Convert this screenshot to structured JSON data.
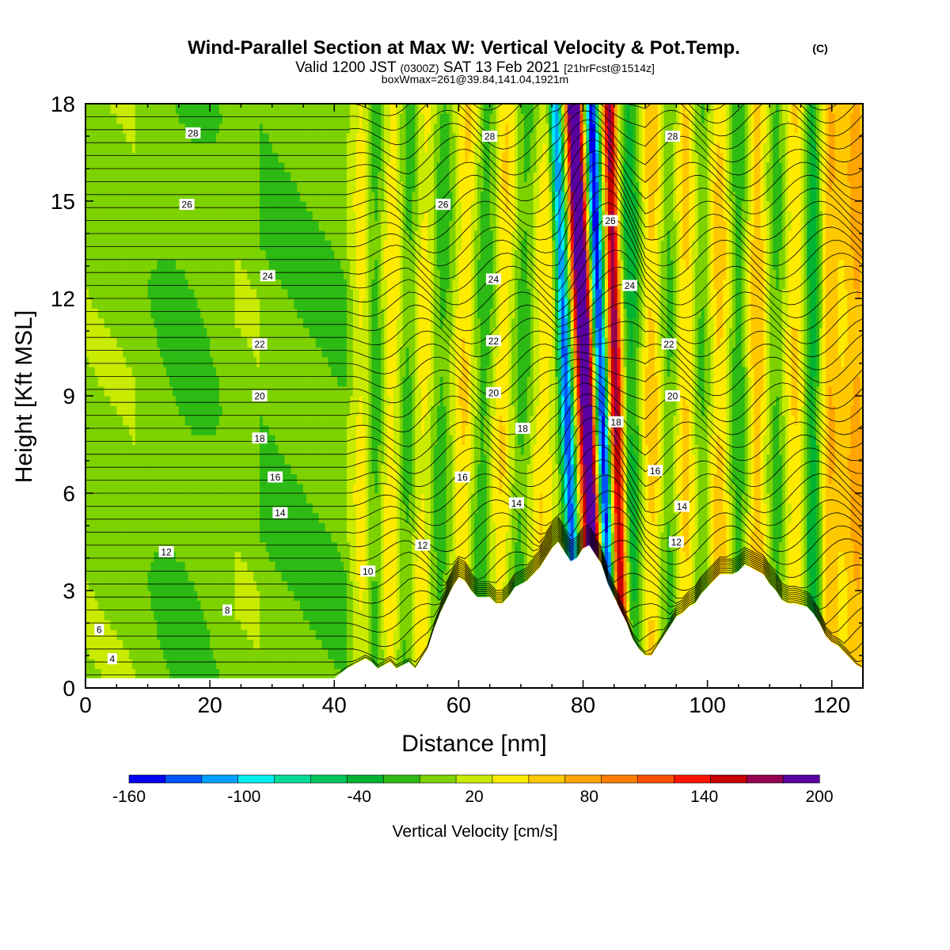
{
  "header": {
    "title": "Wind-Parallel Section at Max W: Vertical Velocity & Pot.Temp.",
    "title_mark": "(C)",
    "valid_prefix": "Valid 1200 JST",
    "valid_utc": "(0300Z)",
    "valid_date": "SAT 13 Feb 2021",
    "forecast": "[21hrFcst@1514z]",
    "boxmax": "boxWmax=261@39.84,141.04,1921m"
  },
  "chart_data": {
    "type": "heatmap",
    "title": "Wind-Parallel Section at Max W: Vertical Velocity & Pot.Temp.",
    "xlabel": "Distance [nm]",
    "ylabel": "Height [Kft MSL]",
    "xlim": [
      0,
      125
    ],
    "ylim": [
      0,
      18
    ],
    "x_ticks": [
      0,
      20,
      40,
      60,
      80,
      100,
      120
    ],
    "y_ticks": [
      0,
      3,
      6,
      9,
      12,
      15,
      18
    ],
    "colorbar": {
      "label": "Vertical Velocity [cm/s]",
      "levels": [
        -160,
        -140,
        -120,
        -100,
        -80,
        -60,
        -40,
        -20,
        0,
        20,
        40,
        60,
        80,
        100,
        120,
        140,
        160,
        180,
        200
      ],
      "tick_labels": [
        -160,
        -100,
        -40,
        20,
        80,
        140,
        200
      ],
      "colors": [
        "#0000f0",
        "#0055ff",
        "#00a0ff",
        "#00ecf0",
        "#00dc96",
        "#00c55a",
        "#00b432",
        "#2dba14",
        "#7dd200",
        "#c8eb00",
        "#ffeb00",
        "#ffc800",
        "#ffa500",
        "#ff7d00",
        "#ff5000",
        "#ff1400",
        "#c80000",
        "#960050",
        "#5a00a0"
      ]
    },
    "terrain": [
      [
        0,
        0.3
      ],
      [
        5,
        0.3
      ],
      [
        10,
        0.3
      ],
      [
        15,
        0.3
      ],
      [
        20,
        0.3
      ],
      [
        25,
        0.3
      ],
      [
        30,
        0.3
      ],
      [
        35,
        0.3
      ],
      [
        40,
        0.3
      ],
      [
        42,
        0.6
      ],
      [
        44,
        0.8
      ],
      [
        45,
        0.9
      ],
      [
        46,
        0.8
      ],
      [
        47,
        0.6
      ],
      [
        49,
        0.8
      ],
      [
        50,
        0.6
      ],
      [
        52,
        0.8
      ],
      [
        53,
        0.6
      ],
      [
        54,
        0.9
      ],
      [
        55,
        1.2
      ],
      [
        56,
        1.8
      ],
      [
        57,
        2.3
      ],
      [
        58,
        2.7
      ],
      [
        59,
        3.1
      ],
      [
        60,
        3.4
      ],
      [
        61,
        3.3
      ],
      [
        62,
        3.0
      ],
      [
        63,
        2.8
      ],
      [
        65,
        2.8
      ],
      [
        66,
        2.6
      ],
      [
        67,
        2.6
      ],
      [
        68,
        2.8
      ],
      [
        69,
        3.1
      ],
      [
        71,
        3.3
      ],
      [
        72,
        3.5
      ],
      [
        73,
        3.7
      ],
      [
        75,
        4.3
      ],
      [
        76,
        4.5
      ],
      [
        77,
        4.2
      ],
      [
        78,
        3.9
      ],
      [
        79,
        4.0
      ],
      [
        80,
        4.3
      ],
      [
        81,
        4.4
      ],
      [
        82,
        4.1
      ],
      [
        83,
        3.8
      ],
      [
        84,
        3.2
      ],
      [
        85,
        2.8
      ],
      [
        86,
        2.4
      ],
      [
        87,
        2.0
      ],
      [
        88,
        1.5
      ],
      [
        89,
        1.2
      ],
      [
        90,
        1.0
      ],
      [
        91,
        1.0
      ],
      [
        92,
        1.3
      ],
      [
        93,
        1.6
      ],
      [
        94,
        1.9
      ],
      [
        95,
        2.2
      ],
      [
        96,
        2.3
      ],
      [
        97,
        2.5
      ],
      [
        98,
        2.6
      ],
      [
        99,
        2.9
      ],
      [
        100,
        3.1
      ],
      [
        101,
        3.3
      ],
      [
        102,
        3.5
      ],
      [
        104,
        3.5
      ],
      [
        105,
        3.6
      ],
      [
        106,
        3.8
      ],
      [
        107,
        3.7
      ],
      [
        108,
        3.6
      ],
      [
        109,
        3.5
      ],
      [
        110,
        3.2
      ],
      [
        111,
        3.0
      ],
      [
        112,
        2.7
      ],
      [
        113,
        2.6
      ],
      [
        114,
        2.6
      ],
      [
        116,
        2.5
      ],
      [
        117,
        2.3
      ],
      [
        118,
        2.0
      ],
      [
        119,
        1.6
      ],
      [
        120,
        1.4
      ],
      [
        121,
        1.3
      ],
      [
        122,
        1.1
      ],
      [
        123,
        0.9
      ],
      [
        124,
        0.7
      ],
      [
        125,
        0.6
      ]
    ],
    "contour_labels": [
      {
        "label": "4",
        "x": 4.3,
        "y": 0.9
      },
      {
        "label": "6",
        "x": 2.2,
        "y": 1.8
      },
      {
        "label": "8",
        "x": 22.8,
        "y": 2.4
      },
      {
        "label": "10",
        "x": 45.4,
        "y": 3.6
      },
      {
        "label": "12",
        "x": 13.0,
        "y": 4.2
      },
      {
        "label": "12",
        "x": 54.2,
        "y": 4.4
      },
      {
        "label": "12",
        "x": 95.0,
        "y": 4.5
      },
      {
        "label": "14",
        "x": 31.3,
        "y": 5.4
      },
      {
        "label": "14",
        "x": 69.3,
        "y": 5.7
      },
      {
        "label": "14",
        "x": 95.9,
        "y": 5.6
      },
      {
        "label": "16",
        "x": 30.5,
        "y": 6.5
      },
      {
        "label": "16",
        "x": 60.6,
        "y": 6.5
      },
      {
        "label": "16",
        "x": 91.6,
        "y": 6.7
      },
      {
        "label": "18",
        "x": 28.0,
        "y": 7.7
      },
      {
        "label": "18",
        "x": 70.3,
        "y": 8.0
      },
      {
        "label": "18",
        "x": 85.3,
        "y": 8.2
      },
      {
        "label": "20",
        "x": 28.0,
        "y": 9.0
      },
      {
        "label": "20",
        "x": 65.6,
        "y": 9.1
      },
      {
        "label": "20",
        "x": 94.4,
        "y": 9.0
      },
      {
        "label": "22",
        "x": 28.0,
        "y": 10.6
      },
      {
        "label": "22",
        "x": 65.6,
        "y": 10.7
      },
      {
        "label": "22",
        "x": 93.8,
        "y": 10.6
      },
      {
        "label": "24",
        "x": 29.3,
        "y": 12.7
      },
      {
        "label": "24",
        "x": 65.6,
        "y": 12.6
      },
      {
        "label": "24",
        "x": 87.5,
        "y": 12.4
      },
      {
        "label": "26",
        "x": 16.3,
        "y": 14.9
      },
      {
        "label": "26",
        "x": 57.5,
        "y": 14.9
      },
      {
        "label": "26",
        "x": 84.4,
        "y": 14.4
      },
      {
        "label": "28",
        "x": 17.3,
        "y": 17.1
      },
      {
        "label": "28",
        "x": 65.0,
        "y": 17.0
      },
      {
        "label": "28",
        "x": 94.4,
        "y": 17.0
      }
    ],
    "grid": false
  }
}
